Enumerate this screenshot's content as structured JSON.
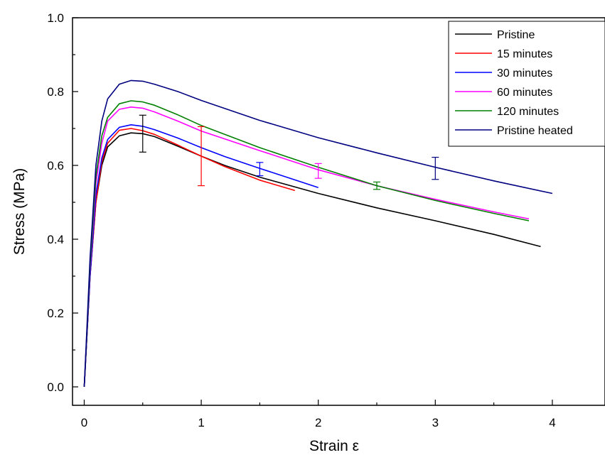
{
  "chart_data": {
    "type": "line",
    "title": "",
    "xlabel": "Strain  ε",
    "ylabel": "Stress (MPa)",
    "xlim": [
      -0.1,
      4.45
    ],
    "ylim": [
      -0.05,
      1.0
    ],
    "xticks": [
      0,
      1,
      2,
      3,
      4
    ],
    "yticks": [
      0.0,
      0.2,
      0.4,
      0.6,
      0.8,
      1.0
    ],
    "ytick_labels": [
      "0.0",
      "0.2",
      "0.4",
      "0.6",
      "0.8",
      "1.0"
    ],
    "grid": false,
    "legend_position": "top-right",
    "series": [
      {
        "name": "Pristine",
        "color": "#000000",
        "x": [
          0.0,
          0.02,
          0.05,
          0.1,
          0.15,
          0.2,
          0.3,
          0.4,
          0.5,
          0.6,
          0.8,
          1.0,
          1.2,
          1.5,
          2.0,
          2.5,
          3.0,
          3.5,
          3.9
        ],
        "y": [
          0.0,
          0.12,
          0.3,
          0.5,
          0.6,
          0.65,
          0.68,
          0.688,
          0.686,
          0.678,
          0.652,
          0.625,
          0.6,
          0.568,
          0.524,
          0.485,
          0.45,
          0.413,
          0.38
        ],
        "error_bars": [
          {
            "x": 0.5,
            "y": 0.686,
            "err": 0.05
          }
        ]
      },
      {
        "name": "15 minutes",
        "color": "#ff0000",
        "x": [
          0.0,
          0.02,
          0.05,
          0.1,
          0.15,
          0.2,
          0.3,
          0.4,
          0.5,
          0.6,
          0.8,
          1.0,
          1.2,
          1.5,
          1.8
        ],
        "y": [
          0.0,
          0.12,
          0.3,
          0.5,
          0.61,
          0.66,
          0.695,
          0.7,
          0.694,
          0.684,
          0.655,
          0.625,
          0.597,
          0.56,
          0.532
        ],
        "error_bars": [
          {
            "x": 1.0,
            "y": 0.625,
            "err": 0.08
          }
        ]
      },
      {
        "name": "30 minutes",
        "color": "#0000ff",
        "x": [
          0.0,
          0.02,
          0.05,
          0.1,
          0.15,
          0.2,
          0.3,
          0.4,
          0.5,
          0.6,
          0.8,
          1.0,
          1.2,
          1.5,
          2.0
        ],
        "y": [
          0.0,
          0.12,
          0.3,
          0.52,
          0.62,
          0.67,
          0.703,
          0.71,
          0.706,
          0.697,
          0.674,
          0.648,
          0.624,
          0.592,
          0.54
        ],
        "error_bars": [
          {
            "x": 1.5,
            "y": 0.59,
            "err": 0.018
          }
        ]
      },
      {
        "name": "60 minutes",
        "color": "#ff00ff",
        "x": [
          0.0,
          0.02,
          0.05,
          0.1,
          0.15,
          0.2,
          0.3,
          0.4,
          0.5,
          0.6,
          0.8,
          1.0,
          1.5,
          2.0,
          2.5,
          3.0,
          3.5,
          3.8
        ],
        "y": [
          0.0,
          0.13,
          0.32,
          0.55,
          0.66,
          0.72,
          0.752,
          0.758,
          0.755,
          0.745,
          0.72,
          0.693,
          0.64,
          0.588,
          0.545,
          0.508,
          0.474,
          0.455
        ],
        "error_bars": [
          {
            "x": 2.0,
            "y": 0.585,
            "err": 0.02
          }
        ]
      },
      {
        "name": "120 minutes",
        "color": "#008000",
        "x": [
          0.0,
          0.02,
          0.05,
          0.1,
          0.15,
          0.2,
          0.3,
          0.4,
          0.5,
          0.6,
          0.8,
          1.0,
          1.5,
          2.0,
          2.5,
          3.0,
          3.5,
          3.8
        ],
        "y": [
          0.0,
          0.13,
          0.33,
          0.57,
          0.68,
          0.73,
          0.767,
          0.775,
          0.772,
          0.763,
          0.737,
          0.708,
          0.648,
          0.595,
          0.545,
          0.505,
          0.47,
          0.45
        ],
        "error_bars": [
          {
            "x": 2.5,
            "y": 0.545,
            "err": 0.01
          }
        ]
      },
      {
        "name": "Pristine heated",
        "color": "#000080",
        "x": [
          0.0,
          0.02,
          0.05,
          0.1,
          0.15,
          0.2,
          0.3,
          0.4,
          0.5,
          0.6,
          0.8,
          1.0,
          1.5,
          2.0,
          2.5,
          3.0,
          3.5,
          4.0
        ],
        "y": [
          0.0,
          0.14,
          0.35,
          0.6,
          0.72,
          0.78,
          0.82,
          0.83,
          0.828,
          0.82,
          0.8,
          0.776,
          0.722,
          0.675,
          0.634,
          0.595,
          0.558,
          0.524
        ],
        "error_bars": [
          {
            "x": 3.0,
            "y": 0.592,
            "err": 0.03
          }
        ]
      }
    ]
  }
}
